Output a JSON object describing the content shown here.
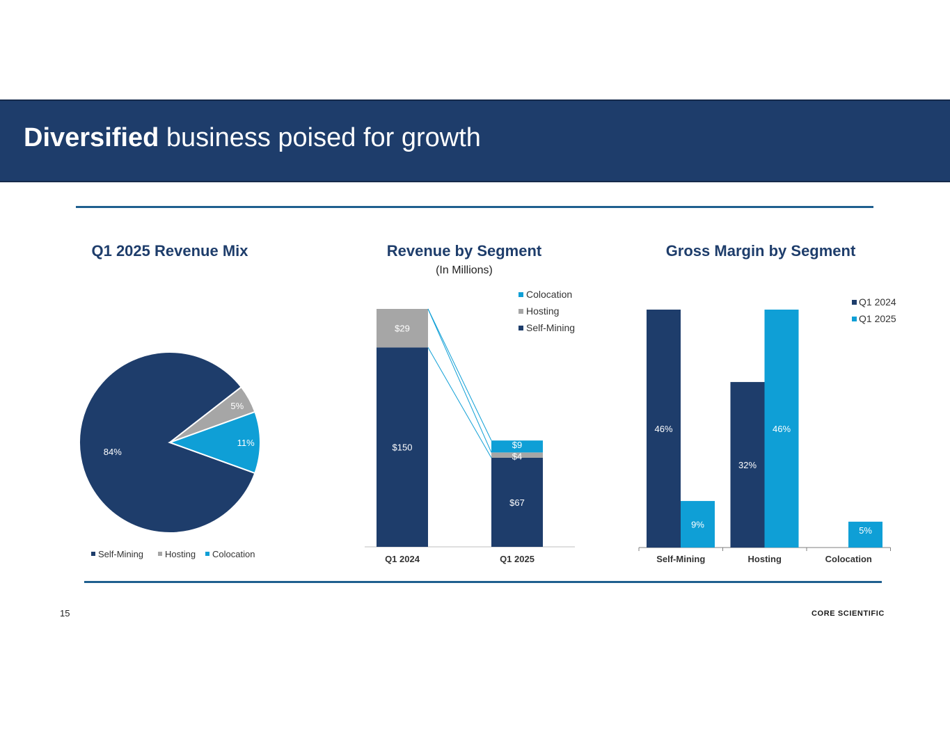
{
  "slide": {
    "title_bold": "Diversified",
    "title_rest": " business poised for growth",
    "page_number": "15",
    "logo_text": "CORE SCIENTIFIC"
  },
  "colors": {
    "navy": "#1e3d6b",
    "gray": "#a6a6a6",
    "cyan": "#0f9fd6"
  },
  "chart_data": [
    {
      "type": "pie",
      "title": "Q1 2025 Revenue Mix",
      "labels": [
        "Self-Mining",
        "Hosting",
        "Colocation"
      ],
      "values": [
        84,
        5,
        11
      ],
      "value_labels": [
        "84%",
        "5%",
        "11%"
      ],
      "legend": [
        "Self-Mining",
        "Hosting",
        "Colocation"
      ],
      "legend_position": "bottom"
    },
    {
      "type": "bar",
      "stacked": true,
      "title": "Revenue by Segment",
      "subtitle": "(In Millions)",
      "categories": [
        "Q1 2024",
        "Q1 2025"
      ],
      "series": [
        {
          "name": "Self-Mining",
          "values": [
            150,
            67
          ],
          "labels": [
            "$150",
            "$67"
          ]
        },
        {
          "name": "Hosting",
          "values": [
            29,
            4
          ],
          "labels": [
            "$29",
            "$4"
          ]
        },
        {
          "name": "Colocation",
          "values": [
            0,
            9
          ],
          "labels": [
            "",
            "$9"
          ]
        }
      ],
      "legend": [
        "Colocation",
        "Hosting",
        "Self-Mining"
      ],
      "legend_position": "top-right",
      "ylim": [
        0,
        179
      ]
    },
    {
      "type": "bar",
      "title": "Gross Margin by Segment",
      "categories": [
        "Self-Mining",
        "Hosting",
        "Colocation"
      ],
      "series": [
        {
          "name": "Q1 2024",
          "values": [
            46,
            32,
            null
          ],
          "labels": [
            "46%",
            "32%",
            ""
          ]
        },
        {
          "name": "Q1 2025",
          "values": [
            9,
            46,
            5
          ],
          "labels": [
            "9%",
            "46%",
            "5%"
          ]
        }
      ],
      "legend": [
        "Q1 2024",
        "Q1 2025"
      ],
      "legend_position": "top-right"
    }
  ]
}
